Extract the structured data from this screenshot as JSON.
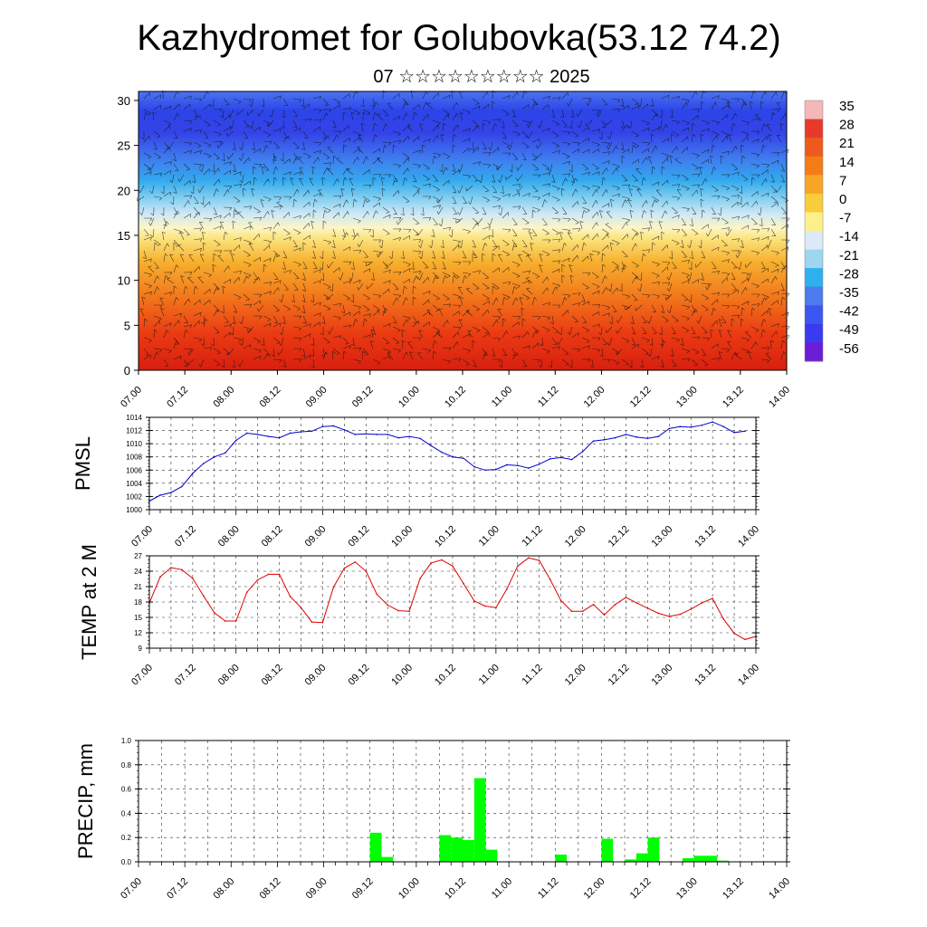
{
  "title": "Kazhydromet for Golubovka(53.12 74.2)",
  "subtitle": "07 ☆☆☆☆☆☆☆☆☆ 2025",
  "time_labels": [
    "07.00",
    "07.12",
    "08.00",
    "08.12",
    "09.00",
    "09.12",
    "10.00",
    "10.12",
    "11.00",
    "11.12",
    "12.00",
    "12.12",
    "13.00",
    "13.12",
    "14.00"
  ],
  "chart_data": [
    {
      "type": "heatmap",
      "title": "",
      "xlabel": "",
      "ylabel": "",
      "ylim": [
        0,
        31
      ],
      "y_ticks": [
        0,
        5,
        10,
        15,
        20,
        25,
        30
      ],
      "colorbar_labels": [
        "35",
        "28",
        "21",
        "14",
        "7",
        "0",
        "-7",
        "-14",
        "-21",
        "-28",
        "-35",
        "-42",
        "-49",
        "-56"
      ],
      "colorbar_colors": [
        "#f4b8b8",
        "#e83a2a",
        "#ee5a1e",
        "#f47c18",
        "#f6a524",
        "#f9cc3c",
        "#fdf08a",
        "#dbeaf6",
        "#9ed6f2",
        "#2fb0ee",
        "#4c7bf0",
        "#3c57ef",
        "#3a3bef",
        "#6a1ed6"
      ],
      "overlay": "wind barbs"
    },
    {
      "type": "line",
      "ylabel": "PMSL",
      "ylim": [
        1000,
        1014
      ],
      "y_ticks": [
        "1000",
        "1002",
        "1004",
        "1006",
        "1008",
        "1010",
        "1012",
        "1014"
      ],
      "series": [
        {
          "color": "#0000cc",
          "x": [
            0,
            3,
            6,
            9,
            12,
            15,
            18,
            21,
            24,
            27,
            30,
            33,
            36,
            39,
            42,
            45,
            48,
            51,
            54,
            57,
            60,
            63,
            66,
            69,
            72,
            75,
            78,
            81,
            84,
            87,
            90,
            93,
            96,
            99,
            102,
            105,
            108,
            111,
            114,
            117,
            120,
            123,
            126,
            129,
            132,
            135,
            138,
            141,
            144,
            147,
            150,
            153,
            156,
            159,
            162,
            165,
            168
          ],
          "values": [
            1001.3,
            1002.2,
            1002.6,
            1003.5,
            1005.5,
            1007.0,
            1008.0,
            1008.6,
            1010.5,
            1011.6,
            1011.4,
            1011.1,
            1010.9,
            1011.6,
            1011.8,
            1011.9,
            1012.6,
            1012.7,
            1012.1,
            1011.4,
            1011.5,
            1011.4,
            1011.4,
            1010.9,
            1011.1,
            1010.8,
            1009.7,
            1008.7,
            1008.0,
            1007.8,
            1006.5,
            1006.0,
            1006.1,
            1006.8,
            1006.7,
            1006.3,
            1006.9,
            1007.7,
            1007.9,
            1007.6,
            1008.8,
            1010.4,
            1010.6,
            1010.9,
            1011.4,
            1011.0,
            1010.8,
            1011.1,
            1012.3,
            1012.6,
            1012.5,
            1012.8,
            1013.3,
            1012.6,
            1011.7,
            1011.9,
            null
          ]
        }
      ]
    },
    {
      "type": "line",
      "ylabel": "TEMP at 2 M",
      "ylim": [
        9,
        27
      ],
      "y_ticks": [
        "9",
        "12",
        "15",
        "18",
        "21",
        "24",
        "27"
      ],
      "series": [
        {
          "color": "#dd0000",
          "x": [
            0,
            3,
            6,
            9,
            12,
            15,
            18,
            21,
            24,
            27,
            30,
            33,
            36,
            39,
            42,
            45,
            48,
            51,
            54,
            57,
            60,
            63,
            66,
            69,
            72,
            75,
            78,
            81,
            84,
            87,
            90,
            93,
            96,
            99,
            102,
            105,
            108,
            111,
            114,
            117,
            120,
            123,
            126,
            129,
            132,
            135,
            138,
            141,
            144,
            147,
            150,
            153,
            156,
            159,
            162,
            165,
            168
          ],
          "values": [
            17.8,
            22.9,
            24.7,
            24.3,
            22.6,
            19.2,
            15.9,
            14.3,
            14.3,
            19.9,
            22.3,
            23.4,
            23.4,
            19.1,
            16.9,
            14.1,
            14.0,
            20.9,
            24.6,
            25.8,
            24.0,
            19.5,
            17.4,
            16.3,
            16.2,
            22.6,
            25.6,
            26.2,
            25.0,
            21.6,
            18.2,
            17.2,
            16.9,
            20.5,
            25.0,
            26.6,
            26.1,
            22.4,
            18.3,
            16.2,
            16.2,
            17.5,
            15.5,
            17.5,
            18.9,
            17.8,
            16.8,
            15.8,
            15.2,
            15.6,
            16.6,
            17.8,
            18.7,
            14.7,
            11.9,
            10.7,
            11.3
          ]
        }
      ]
    },
    {
      "type": "bar",
      "ylabel": "PRECIP, mm",
      "ylim": [
        0,
        1.0
      ],
      "y_ticks": [
        "0.0",
        "0.2",
        "0.4",
        "0.6",
        "0.8",
        "1.0"
      ],
      "color": "#00ff00",
      "x": [
        60,
        63,
        78,
        81,
        84,
        87,
        90,
        108,
        120,
        126,
        129,
        132,
        141,
        144,
        147,
        150
      ],
      "values": [
        0.24,
        0.04,
        0.22,
        0.2,
        0.18,
        0.69,
        0.1,
        0.06,
        0.19,
        0.02,
        0.07,
        0.2,
        0.03,
        0.05,
        0.05,
        0.01
      ]
    }
  ]
}
